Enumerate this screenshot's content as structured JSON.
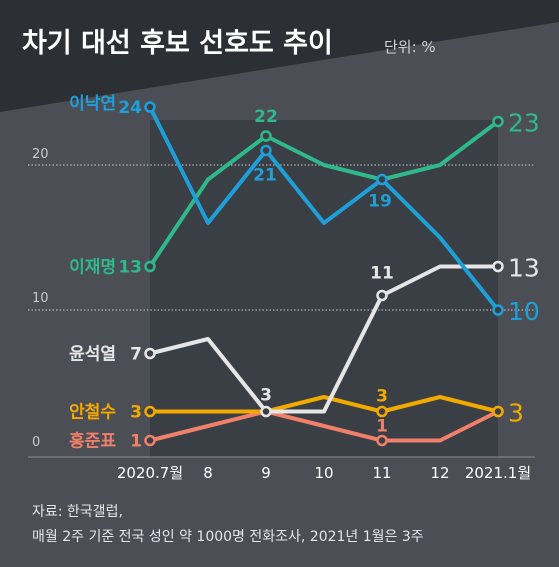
{
  "title": "차기 대선 후보 선호도 추이",
  "unit": "단위: %",
  "source": "자료: 한국갤럽,",
  "note": "매월 2주 기준 전국 성인 약 1000명 전화조사, 2021년 1월은 3주",
  "colors": {
    "background": "#4b4f55",
    "header": "#2c3035",
    "plot_band": "#3a3f45",
    "lee_nakyon": "#1e9fd8",
    "lee_jaemyung": "#2fb88a",
    "yoon": "#e6e6e6",
    "ahn": "#f2a900",
    "hong": "#f0806a"
  },
  "chart_data": {
    "type": "line",
    "categories": [
      "2020.7월",
      "8",
      "9",
      "10",
      "11",
      "12",
      "2021.1월"
    ],
    "ylim": [
      0,
      25
    ],
    "yticks": [
      "0",
      "10",
      "20"
    ],
    "series": [
      {
        "name": "이낙연",
        "color_key": "lee_nakyon",
        "values": [
          24,
          16,
          21,
          16,
          19,
          15,
          10
        ],
        "labels": {
          "0": "24",
          "2": "21",
          "4": "19"
        },
        "end_label": "10"
      },
      {
        "name": "이재명",
        "color_key": "lee_jaemyung",
        "values": [
          13,
          19,
          22,
          20,
          19,
          20,
          23
        ],
        "labels": {
          "0": "13",
          "2": "22"
        },
        "end_label": "23"
      },
      {
        "name": "윤석열",
        "color_key": "yoon",
        "values": [
          7,
          8,
          3,
          3,
          11,
          13,
          13
        ],
        "labels": {
          "0": "7",
          "2": "3",
          "4": "11"
        },
        "end_label": "13"
      },
      {
        "name": "안철수",
        "color_key": "ahn",
        "values": [
          3,
          3,
          3,
          4,
          3,
          4,
          3
        ],
        "labels": {
          "0": "3",
          "4": "3"
        },
        "end_label": "3"
      },
      {
        "name": "홍준표",
        "color_key": "hong",
        "values": [
          1,
          2,
          3,
          2,
          1,
          1,
          3
        ],
        "labels": {
          "0": "1",
          "4": "1"
        },
        "end_label": ""
      }
    ]
  }
}
